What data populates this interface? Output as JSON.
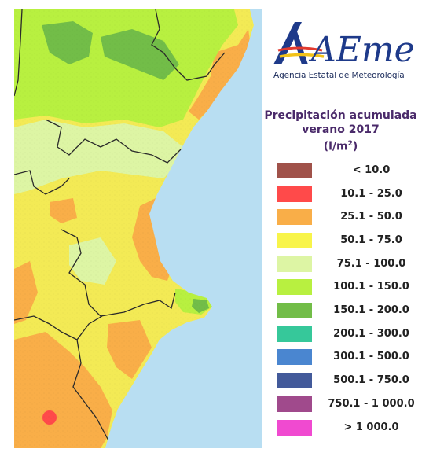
{
  "header": {
    "logo_text": "AEmet",
    "agency_name": "Agencia Estatal de Meteorología"
  },
  "legend": {
    "title_line1": "Precipitación acumulada",
    "title_line2": "verano 2017",
    "title_unit": "(l/m",
    "title_unit_sup": "2",
    "title_unit_close": ")",
    "items": [
      {
        "label": "< 10.0",
        "color": "#a0524a"
      },
      {
        "label": "10.1 - 25.0",
        "color": "#ff4a4a"
      },
      {
        "label": "25.1 - 50.0",
        "color": "#f9ae48"
      },
      {
        "label": "50.1 - 75.0",
        "color": "#f8f44a"
      },
      {
        "label": "75.1 - 100.0",
        "color": "#ddf5a4"
      },
      {
        "label": "100.1 - 150.0",
        "color": "#b8f040"
      },
      {
        "label": "150.1 - 200.0",
        "color": "#72bd48"
      },
      {
        "label": "200.1 - 300.0",
        "color": "#36c89a"
      },
      {
        "label": "300.1 - 500.0",
        "color": "#4a86d0"
      },
      {
        "label": "500.1 - 750.0",
        "color": "#435a9a"
      },
      {
        "label": "750.1 - 1 000.0",
        "color": "#a04a8c"
      },
      {
        "label": "> 1 000.0",
        "color": "#f04ad0"
      }
    ]
  },
  "map": {
    "sea_color": "#b8def2",
    "land_color": "#f3ea55",
    "border_color": "#2a2a2a"
  }
}
